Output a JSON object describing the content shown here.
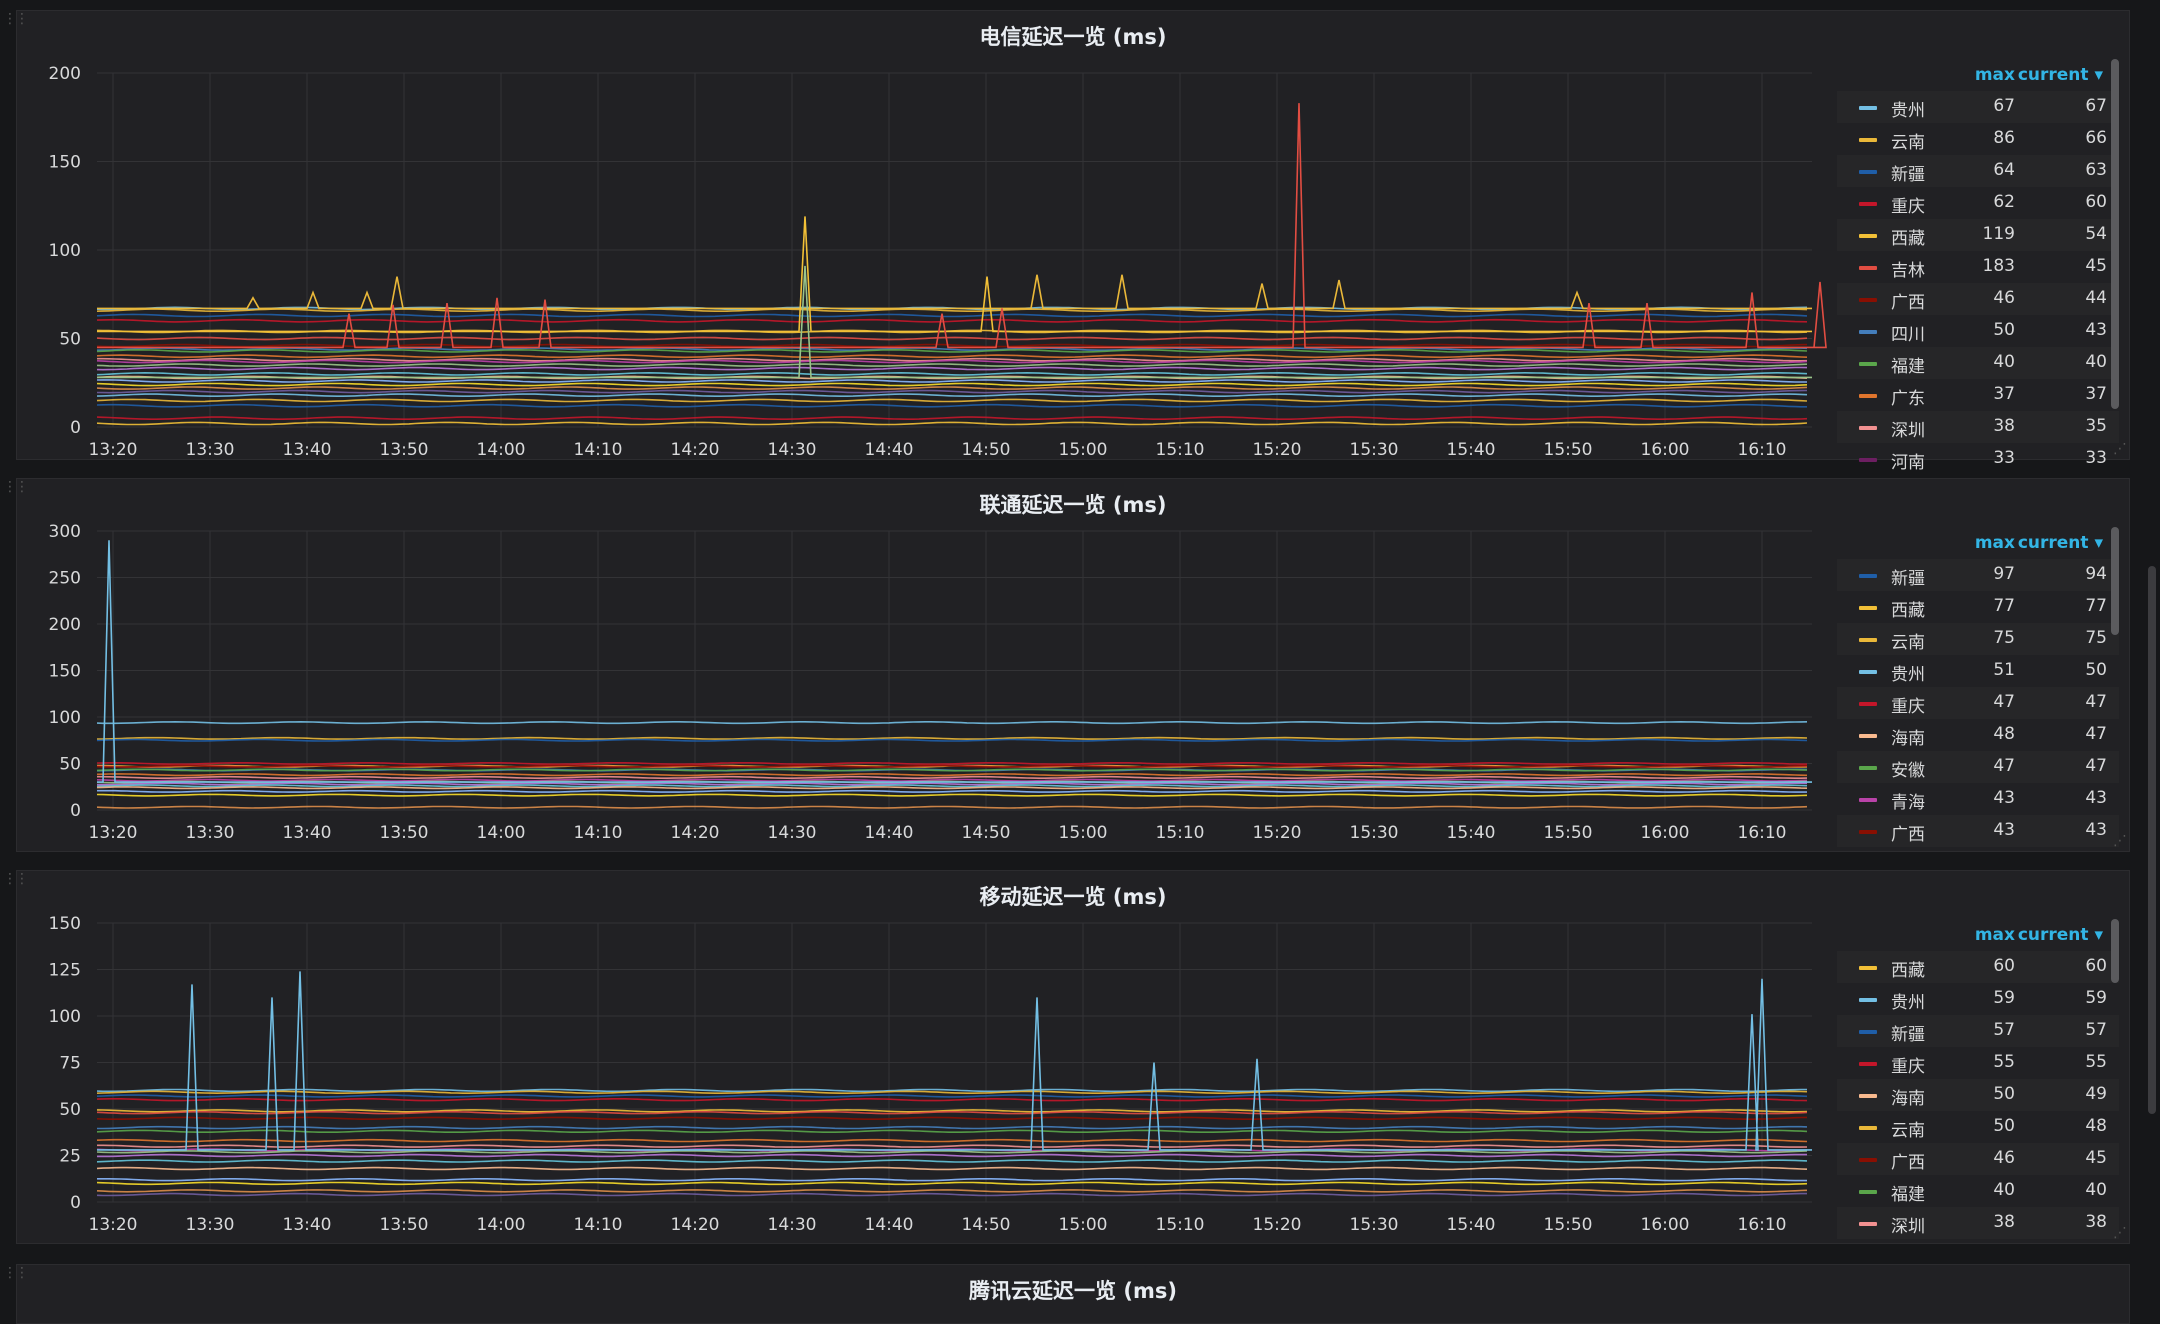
{
  "panels": [
    {
      "title": "电信延迟一览 (ms)",
      "y_ticks": [
        "200",
        "150",
        "100",
        "50",
        "0"
      ],
      "x_ticks": [
        "13:20",
        "13:30",
        "13:40",
        "13:50",
        "14:00",
        "14:10",
        "14:20",
        "14:30",
        "14:40",
        "14:50",
        "15:00",
        "15:10",
        "15:20",
        "15:30",
        "15:40",
        "15:50",
        "16:00",
        "16:10"
      ],
      "legend_headers": {
        "max": "max",
        "current": "current ▾"
      },
      "legend": [
        {
          "name": "贵州",
          "max": "67",
          "current": "67",
          "color": "#73bfe4"
        },
        {
          "name": "云南",
          "max": "86",
          "current": "66",
          "color": "#eab839"
        },
        {
          "name": "新疆",
          "max": "64",
          "current": "63",
          "color": "#1f5ea8"
        },
        {
          "name": "重庆",
          "max": "62",
          "current": "60",
          "color": "#c4162a"
        },
        {
          "name": "西藏",
          "max": "119",
          "current": "54",
          "color": "#f2c037"
        },
        {
          "name": "吉林",
          "max": "183",
          "current": "45",
          "color": "#e24d42"
        },
        {
          "name": "广西",
          "max": "46",
          "current": "44",
          "color": "#890f02"
        },
        {
          "name": "四川",
          "max": "50",
          "current": "43",
          "color": "#447ebc"
        },
        {
          "name": "福建",
          "max": "40",
          "current": "40",
          "color": "#5aa64b"
        },
        {
          "name": "广东",
          "max": "37",
          "current": "37",
          "color": "#e0752d"
        },
        {
          "name": "深圳",
          "max": "38",
          "current": "35",
          "color": "#f29191"
        },
        {
          "name": "河南",
          "max": "33",
          "current": "33",
          "color": "#6d1f62"
        }
      ]
    },
    {
      "title": "联通延迟一览 (ms)",
      "y_ticks": [
        "300",
        "250",
        "200",
        "150",
        "100",
        "50",
        "0"
      ],
      "x_ticks": [
        "13:20",
        "13:30",
        "13:40",
        "13:50",
        "14:00",
        "14:10",
        "14:20",
        "14:30",
        "14:40",
        "14:50",
        "15:00",
        "15:10",
        "15:20",
        "15:30",
        "15:40",
        "15:50",
        "16:00",
        "16:10"
      ],
      "legend_headers": {
        "max": "max",
        "current": "current ▾"
      },
      "legend": [
        {
          "name": "新疆",
          "max": "97",
          "current": "94",
          "color": "#1f5ea8"
        },
        {
          "name": "西藏",
          "max": "77",
          "current": "77",
          "color": "#f2c037"
        },
        {
          "name": "云南",
          "max": "75",
          "current": "75",
          "color": "#eab839"
        },
        {
          "name": "贵州",
          "max": "51",
          "current": "50",
          "color": "#73bfe4"
        },
        {
          "name": "重庆",
          "max": "47",
          "current": "47",
          "color": "#c4162a"
        },
        {
          "name": "海南",
          "max": "48",
          "current": "47",
          "color": "#f9ba8f"
        },
        {
          "name": "安徽",
          "max": "47",
          "current": "47",
          "color": "#5aa64b"
        },
        {
          "name": "青海",
          "max": "43",
          "current": "43",
          "color": "#ba43a9"
        },
        {
          "name": "广西",
          "max": "43",
          "current": "43",
          "color": "#890f02"
        }
      ]
    },
    {
      "title": "移动延迟一览 (ms)",
      "y_ticks": [
        "150",
        "125",
        "100",
        "75",
        "50",
        "25",
        "0"
      ],
      "x_ticks": [
        "13:20",
        "13:30",
        "13:40",
        "13:50",
        "14:00",
        "14:10",
        "14:20",
        "14:30",
        "14:40",
        "14:50",
        "15:00",
        "15:10",
        "15:20",
        "15:30",
        "15:40",
        "15:50",
        "16:00",
        "16:10"
      ],
      "legend_headers": {
        "max": "max",
        "current": "current ▾"
      },
      "legend": [
        {
          "name": "西藏",
          "max": "60",
          "current": "60",
          "color": "#f2c037"
        },
        {
          "name": "贵州",
          "max": "59",
          "current": "59",
          "color": "#73bfe4"
        },
        {
          "name": "新疆",
          "max": "57",
          "current": "57",
          "color": "#1f5ea8"
        },
        {
          "name": "重庆",
          "max": "55",
          "current": "55",
          "color": "#c4162a"
        },
        {
          "name": "海南",
          "max": "50",
          "current": "49",
          "color": "#f9ba8f"
        },
        {
          "name": "云南",
          "max": "50",
          "current": "48",
          "color": "#eab839"
        },
        {
          "name": "广西",
          "max": "46",
          "current": "45",
          "color": "#890f02"
        },
        {
          "name": "福建",
          "max": "40",
          "current": "40",
          "color": "#5aa64b"
        },
        {
          "name": "深圳",
          "max": "38",
          "current": "38",
          "color": "#f29191"
        }
      ]
    },
    {
      "title": "腾讯云延迟一览 (ms)"
    }
  ]
}
